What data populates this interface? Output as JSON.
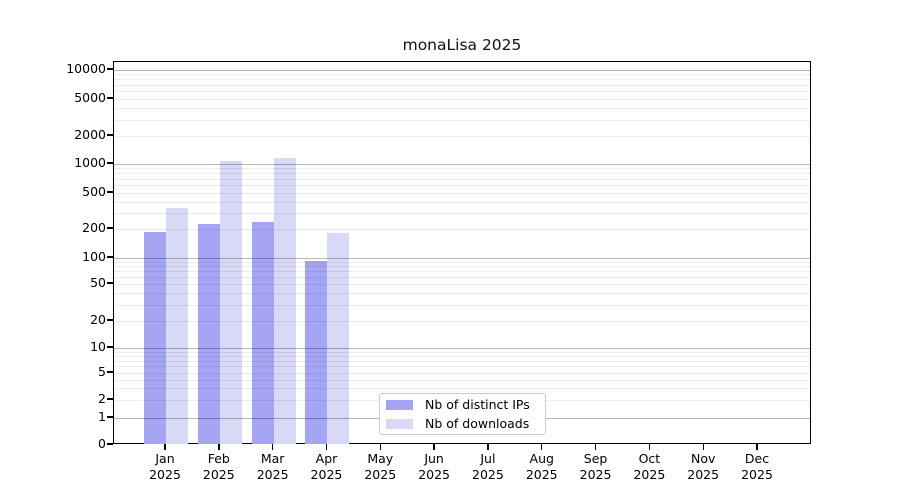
{
  "chart_data": {
    "type": "bar",
    "title": "monaLisa 2025",
    "x_months": [
      "Jan",
      "Feb",
      "Mar",
      "Apr",
      "May",
      "Jun",
      "Jul",
      "Aug",
      "Sep",
      "Oct",
      "Nov",
      "Dec"
    ],
    "x_year": "2025",
    "series": [
      {
        "name": "Nb of distinct IPs",
        "color": "#a5a5f4",
        "values": [
          185,
          225,
          240,
          92,
          0,
          0,
          0,
          0,
          0,
          0,
          0,
          0
        ]
      },
      {
        "name": "Nb of downloads",
        "color": "#d8d8f7",
        "values": [
          340,
          1080,
          1150,
          180,
          0,
          0,
          0,
          0,
          0,
          0,
          0,
          0
        ]
      }
    ],
    "yscale": "symlog",
    "yticks": [
      0,
      1,
      2,
      5,
      10,
      20,
      50,
      100,
      200,
      500,
      1000,
      2000,
      5000,
      10000
    ],
    "ylim": [
      0,
      12000
    ],
    "grid": true,
    "legend_position": "lower center"
  }
}
